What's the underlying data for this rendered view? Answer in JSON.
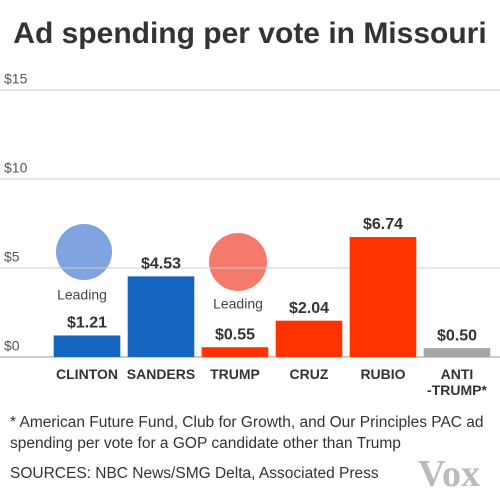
{
  "chart_data": {
    "type": "bar",
    "title": "Ad spending per vote in Missouri",
    "categories": [
      "CLINTON",
      "SANDERS",
      "TRUMP",
      "CRUZ",
      "RUBIO",
      "ANTI\n-TRUMP*"
    ],
    "values": [
      1.21,
      4.53,
      0.55,
      2.04,
      6.74,
      0.5
    ],
    "value_labels": [
      "$1.21",
      "$4.53",
      "$0.55",
      "$2.04",
      "$6.74",
      "$0.50"
    ],
    "colors": [
      "#1565c0",
      "#1565c0",
      "#ff3300",
      "#ff3300",
      "#ff3300",
      "#a6a6a6"
    ],
    "ylim": [
      0,
      15
    ],
    "yticks": [
      {
        "value": 0,
        "label": "$0"
      },
      {
        "value": 5,
        "label": "$5"
      },
      {
        "value": 10,
        "label": "$10"
      },
      {
        "value": 15,
        "label": "$15"
      }
    ],
    "grid": true,
    "annotations": [
      "Leading",
      "Leading"
    ],
    "footnote": "* American Future Fund, Club for Growth, and Our Principles PAC ad spending per vote for a GOP candidate other than Trump",
    "source": "SOURCES: NBC News/SMG Delta, Associated Press",
    "logo": "Vox"
  }
}
